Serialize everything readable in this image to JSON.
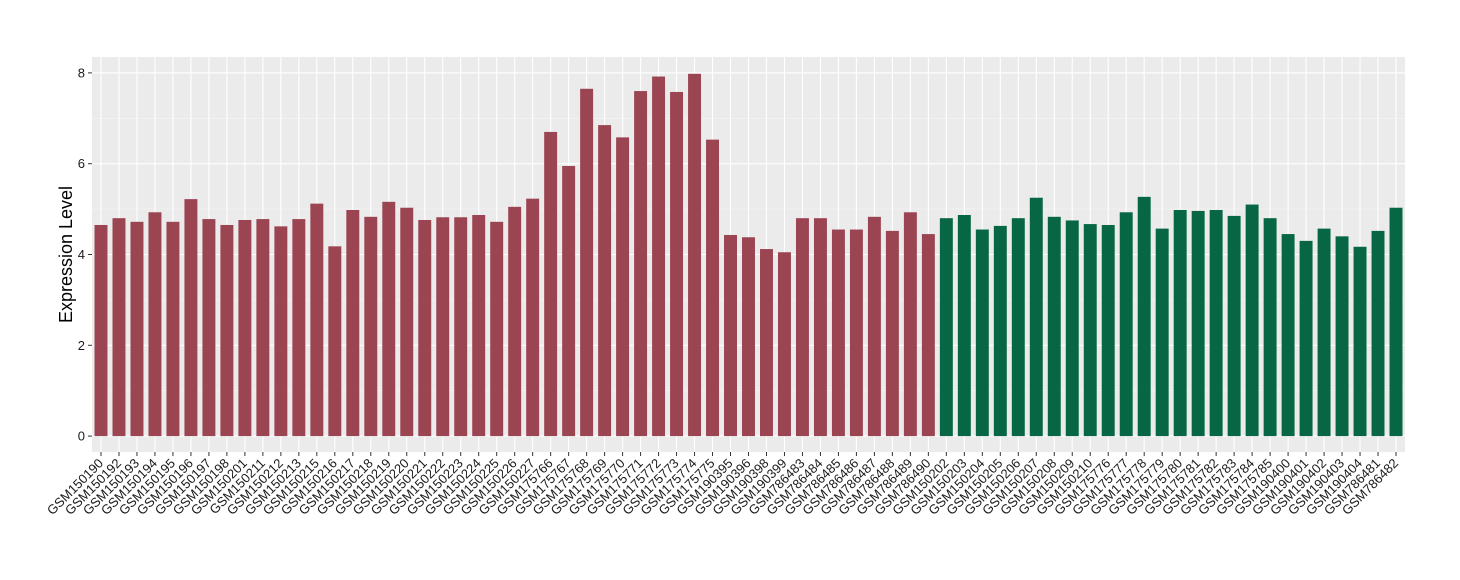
{
  "colors": {
    "panel_bg": "#EBEBEB",
    "grid_major": "#FFFFFF",
    "group_a": "#9B4452",
    "group_b": "#076744"
  },
  "chart_data": {
    "type": "bar",
    "ylabel": "Expression Level",
    "xlabel": "",
    "ylim": [
      -0.35,
      8.35
    ],
    "yticks": [
      0,
      2,
      4,
      6,
      8
    ],
    "grid": true,
    "legend": "none",
    "categories": [
      "GSM150190",
      "GSM150192",
      "GSM150193",
      "GSM150194",
      "GSM150195",
      "GSM150196",
      "GSM150197",
      "GSM150198",
      "GSM150201",
      "GSM150211",
      "GSM150212",
      "GSM150213",
      "GSM150215",
      "GSM150216",
      "GSM150217",
      "GSM150218",
      "GSM150219",
      "GSM150220",
      "GSM150221",
      "GSM150222",
      "GSM150223",
      "GSM150224",
      "GSM150225",
      "GSM150226",
      "GSM150227",
      "GSM175766",
      "GSM175767",
      "GSM175768",
      "GSM175769",
      "GSM175770",
      "GSM175771",
      "GSM175772",
      "GSM175773",
      "GSM175774",
      "GSM175775",
      "GSM190395",
      "GSM190396",
      "GSM190398",
      "GSM190399",
      "GSM786483",
      "GSM786484",
      "GSM786485",
      "GSM786486",
      "GSM786487",
      "GSM786488",
      "GSM786489",
      "GSM786490",
      "GSM150202",
      "GSM150203",
      "GSM150204",
      "GSM150205",
      "GSM150206",
      "GSM150207",
      "GSM150208",
      "GSM150209",
      "GSM150210",
      "GSM175776",
      "GSM175777",
      "GSM175778",
      "GSM175779",
      "GSM175780",
      "GSM175781",
      "GSM175782",
      "GSM175783",
      "GSM175784",
      "GSM175785",
      "GSM190400",
      "GSM190401",
      "GSM190402",
      "GSM190403",
      "GSM190404",
      "GSM786481",
      "GSM786482"
    ],
    "values": [
      4.65,
      4.8,
      4.72,
      4.93,
      4.72,
      5.22,
      4.78,
      4.65,
      4.76,
      4.78,
      4.62,
      4.78,
      5.12,
      4.18,
      4.98,
      4.83,
      5.16,
      5.03,
      4.76,
      4.82,
      4.82,
      4.87,
      4.72,
      5.05,
      5.23,
      6.7,
      5.95,
      7.65,
      6.85,
      6.58,
      7.6,
      7.92,
      7.58,
      7.98,
      6.53,
      4.43,
      4.38,
      4.12,
      4.05,
      4.8,
      4.8,
      4.55,
      4.55,
      4.83,
      4.52,
      4.93,
      4.45,
      4.8,
      4.87,
      4.55,
      4.63,
      4.8,
      5.25,
      4.83,
      4.75,
      4.67,
      4.65,
      4.93,
      5.27,
      4.57,
      4.98,
      4.96,
      4.98,
      4.85,
      5.1,
      4.8,
      4.45,
      4.3,
      4.57,
      4.4,
      4.17,
      4.52,
      5.03
    ],
    "groups": [
      "a",
      "a",
      "a",
      "a",
      "a",
      "a",
      "a",
      "a",
      "a",
      "a",
      "a",
      "a",
      "a",
      "a",
      "a",
      "a",
      "a",
      "a",
      "a",
      "a",
      "a",
      "a",
      "a",
      "a",
      "a",
      "a",
      "a",
      "a",
      "a",
      "a",
      "a",
      "a",
      "a",
      "a",
      "a",
      "a",
      "a",
      "a",
      "a",
      "a",
      "a",
      "a",
      "a",
      "a",
      "a",
      "a",
      "a",
      "b",
      "b",
      "b",
      "b",
      "b",
      "b",
      "b",
      "b",
      "b",
      "b",
      "b",
      "b",
      "b",
      "b",
      "b",
      "b",
      "b",
      "b",
      "b",
      "b",
      "b",
      "b",
      "b",
      "b",
      "b",
      "b"
    ]
  }
}
